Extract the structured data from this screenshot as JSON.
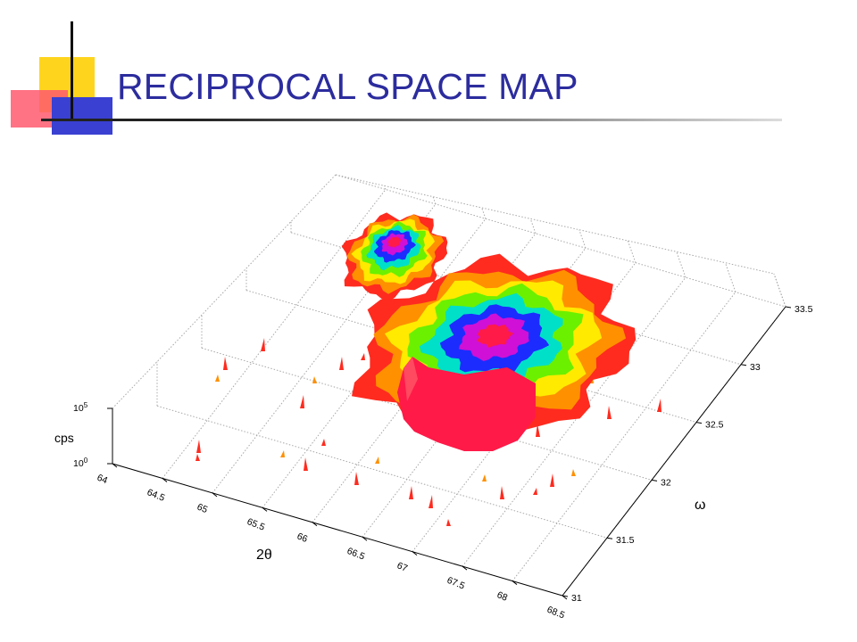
{
  "slide": {
    "title": "RECIPROCAL SPACE MAP"
  },
  "colors": {
    "title": "#2c2c9e",
    "deco_yellow": "#ffd41d",
    "deco_red": "#ff5a6e",
    "deco_blue": "#3940d2",
    "colormap": [
      "#ff2b1f",
      "#ff9000",
      "#ffea00",
      "#6bf000",
      "#00e0c8",
      "#1c2cff",
      "#d010d6",
      "#ff1a48"
    ]
  },
  "chart_data": {
    "type": "surface",
    "title": "",
    "x_axis": {
      "label": "2θ",
      "range": [
        64,
        68.5
      ],
      "ticks": [
        "64",
        "64.5",
        "65",
        "65.5",
        "66",
        "66.5",
        "67",
        "67.5",
        "68",
        "68.5"
      ]
    },
    "y_axis": {
      "label": "ω",
      "range": [
        31,
        33.5
      ],
      "ticks": [
        "31",
        "31.5",
        "32",
        "32.5",
        "33",
        "33.5"
      ]
    },
    "z_axis": {
      "label": "cps",
      "scale": "log",
      "range": [
        1,
        100000
      ],
      "ticks": [
        {
          "base": "10",
          "exp": "0"
        },
        {
          "base": "10",
          "exp": "5"
        }
      ]
    },
    "grid": true,
    "colormap": "jet",
    "peaks": [
      {
        "name": "",
        "two_theta": 64.9,
        "omega": 32.95,
        "level": 0.85,
        "size": "small"
      },
      {
        "name": "",
        "two_theta": 65.9,
        "omega": 32.55,
        "level": 1.0,
        "size": "large"
      }
    ]
  }
}
